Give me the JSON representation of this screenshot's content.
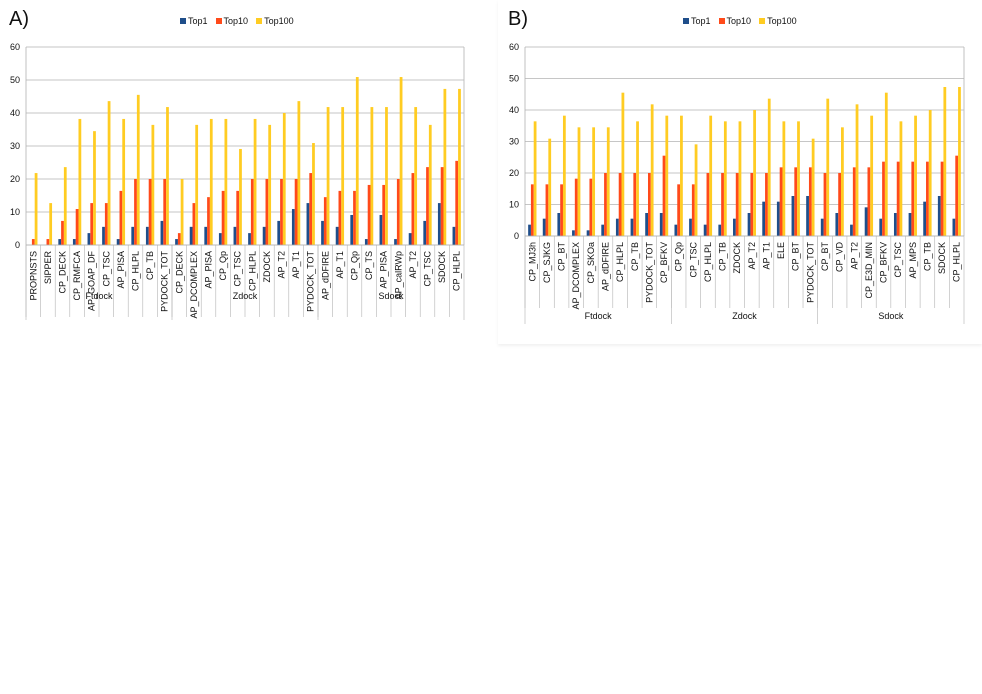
{
  "colors": {
    "Top1": "#1f4e8a",
    "Top10": "#ff4a1a",
    "Top100": "#ffcc22",
    "grid": "#b3b3b3",
    "axis": "#b3b3b3"
  },
  "chart_data": [
    {
      "id": "A",
      "panel_label": "A)",
      "type": "bar",
      "legend": [
        "Top1",
        "Top10",
        "Top100"
      ],
      "ylim": [
        0,
        60
      ],
      "yticks": [
        0,
        10,
        20,
        30,
        40,
        50,
        60
      ],
      "grid": true,
      "legend_position": "top",
      "groups": [
        {
          "name": "Ftdock",
          "categories": [
            "PROPNSTS",
            "SIPPER",
            "CP_DECK",
            "CP_RMFCA",
            "AP_GOAP_DF",
            "CP_TSC",
            "AP_PISA",
            "CP_HLPL",
            "CP_TB",
            "PYDOCK_TOT"
          ],
          "series": [
            {
              "name": "Top1",
              "values": [
                0,
                0,
                1.8,
                1.8,
                3.6,
                5.5,
                1.8,
                5.5,
                5.5,
                7.3
              ]
            },
            {
              "name": "Top10",
              "values": [
                1.8,
                1.8,
                7.3,
                10.9,
                12.7,
                12.7,
                16.4,
                20.0,
                20.0,
                20.0
              ]
            },
            {
              "name": "Top100",
              "values": [
                21.8,
                12.7,
                23.6,
                38.2,
                34.5,
                43.6,
                38.2,
                45.5,
                36.4,
                41.8
              ]
            }
          ]
        },
        {
          "name": "Zdock",
          "categories": [
            "CP_DECK",
            "AP_DCOMPLEX",
            "AP_PISA",
            "CP_Qp",
            "CP_TSC",
            "CP_HLPL",
            "ZDOCK",
            "AP_T2",
            "AP_T1",
            "PYDOCK_TOT"
          ],
          "series": [
            {
              "name": "Top1",
              "values": [
                1.8,
                5.5,
                5.5,
                3.6,
                5.5,
                3.6,
                5.5,
                7.3,
                10.9,
                12.7
              ]
            },
            {
              "name": "Top10",
              "values": [
                3.6,
                12.7,
                14.5,
                16.4,
                16.4,
                20.0,
                20.0,
                20.0,
                20.0,
                21.8
              ]
            },
            {
              "name": "Top100",
              "values": [
                20.0,
                36.4,
                38.2,
                38.2,
                29.1,
                38.2,
                36.4,
                40.0,
                43.6,
                30.9
              ]
            }
          ]
        },
        {
          "name": "Sdock",
          "categories": [
            "AP_dDFIRE",
            "AP_T1",
            "CP_Qp",
            "CP_TS",
            "AP_PISA",
            "AP_calRWp",
            "AP_T2",
            "CP_TSC",
            "SDOCK",
            "CP_HLPL"
          ],
          "series": [
            {
              "name": "Top1",
              "values": [
                7.3,
                5.5,
                9.1,
                1.8,
                9.1,
                1.8,
                3.6,
                7.3,
                12.7,
                5.5
              ]
            },
            {
              "name": "Top10",
              "values": [
                14.5,
                16.4,
                16.4,
                18.2,
                18.2,
                20.0,
                21.8,
                23.6,
                23.6,
                25.5
              ]
            },
            {
              "name": "Top100",
              "values": [
                41.8,
                41.8,
                50.9,
                41.8,
                41.8,
                50.9,
                41.8,
                36.4,
                47.3,
                47.3
              ]
            }
          ]
        }
      ]
    },
    {
      "id": "B",
      "panel_label": "B)",
      "type": "bar",
      "legend": [
        "Top1",
        "Top10",
        "Top100"
      ],
      "ylim": [
        0,
        60
      ],
      "yticks": [
        0,
        10,
        20,
        30,
        40,
        50,
        60
      ],
      "grid": true,
      "legend_position": "top",
      "groups": [
        {
          "name": "Ftdock",
          "categories": [
            "CP_MJ3h",
            "CP_SJKG",
            "CP_BT",
            "AP_DCOMPLEX",
            "CP_SKOa",
            "AP_dDFIRE",
            "CP_HLPL",
            "CP_TB",
            "PYDOCK_TOT",
            "CP_BFKV"
          ],
          "series": [
            {
              "name": "Top1",
              "values": [
                3.6,
                5.5,
                7.3,
                1.8,
                1.8,
                3.6,
                5.5,
                5.5,
                7.3,
                7.3
              ]
            },
            {
              "name": "Top10",
              "values": [
                16.4,
                16.4,
                16.4,
                18.2,
                18.2,
                20.0,
                20.0,
                20.0,
                20.0,
                25.5
              ]
            },
            {
              "name": "Top100",
              "values": [
                36.4,
                30.9,
                38.2,
                34.5,
                34.5,
                34.5,
                45.5,
                36.4,
                41.8,
                38.2
              ]
            }
          ]
        },
        {
          "name": "Zdock",
          "categories": [
            "CP_Qp",
            "CP_TSC",
            "CP_HLPL",
            "CP_TB",
            "ZDOCK",
            "AP_T2",
            "AP_T1",
            "ELE",
            "CP_BT",
            "PYDOCK_TOT"
          ],
          "series": [
            {
              "name": "Top1",
              "values": [
                3.6,
                5.5,
                3.6,
                3.6,
                5.5,
                7.3,
                10.9,
                10.9,
                12.7,
                12.7
              ]
            },
            {
              "name": "Top10",
              "values": [
                16.4,
                16.4,
                20.0,
                20.0,
                20.0,
                20.0,
                20.0,
                21.8,
                21.8,
                21.8
              ]
            },
            {
              "name": "Top100",
              "values": [
                38.2,
                29.1,
                38.2,
                36.4,
                36.4,
                40.0,
                43.6,
                36.4,
                36.4,
                30.9
              ]
            }
          ]
        },
        {
          "name": "Sdock",
          "categories": [
            "CP_BT",
            "CP_VD",
            "AP_T2",
            "CP_E3D_MIN",
            "CP_BFKV",
            "CP_TSC",
            "AP_MPS",
            "CP_TB",
            "SDOCK",
            "CP_HLPL"
          ],
          "series": [
            {
              "name": "Top1",
              "values": [
                5.5,
                7.3,
                3.6,
                9.1,
                5.5,
                7.3,
                7.3,
                10.9,
                12.7,
                5.5
              ]
            },
            {
              "name": "Top10",
              "values": [
                20.0,
                20.0,
                21.8,
                21.8,
                23.6,
                23.6,
                23.6,
                23.6,
                23.6,
                25.5
              ]
            },
            {
              "name": "Top100",
              "values": [
                43.6,
                34.5,
                41.8,
                38.2,
                45.5,
                36.4,
                38.2,
                40.0,
                47.3,
                47.3
              ]
            }
          ]
        }
      ]
    }
  ]
}
